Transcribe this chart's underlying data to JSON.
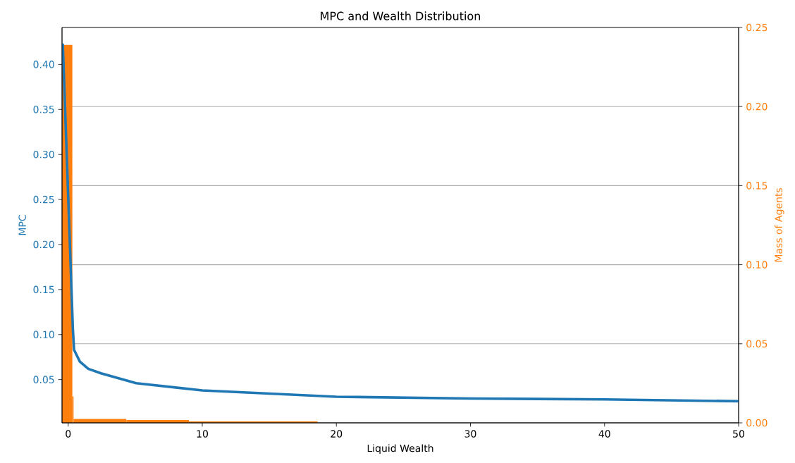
{
  "chart_data": {
    "type": "line",
    "title": "MPC and Wealth Distribution",
    "xlabel": "Liquid Wealth",
    "ylabel": "MPC",
    "y2label": "Mass of Agents",
    "xlim": [
      -0.46,
      50
    ],
    "xticks": [
      0,
      10,
      20,
      30,
      40,
      50
    ],
    "ylim": [
      0.002,
      0.441
    ],
    "yticks": [
      {
        "value": 0.05,
        "label": "0.05"
      },
      {
        "value": 0.1,
        "label": "0.10"
      },
      {
        "value": 0.15,
        "label": "0.15"
      },
      {
        "value": 0.2,
        "label": "0.20"
      },
      {
        "value": 0.25,
        "label": "0.25"
      },
      {
        "value": 0.3,
        "label": "0.30"
      },
      {
        "value": 0.35,
        "label": "0.35"
      },
      {
        "value": 0.4,
        "label": "0.40"
      }
    ],
    "y2lim": [
      0,
      0.25
    ],
    "y2ticks": [
      {
        "value": 0,
        "label": "0.00"
      },
      {
        "value": 0.05,
        "label": "0.05"
      },
      {
        "value": 0.1,
        "label": "0.10"
      },
      {
        "value": 0.15,
        "label": "0.15"
      },
      {
        "value": 0.2,
        "label": "0.20"
      },
      {
        "value": 0.25,
        "label": "0.25"
      }
    ],
    "grid": "y2",
    "series": [
      {
        "color": "#1f77b4",
        "x": [
          -0.4,
          0.35,
          0.44,
          0.87,
          1.5,
          2.45,
          5.07,
          10,
          20,
          30,
          40,
          50
        ],
        "values": [
          0.422,
          0.106,
          0.083,
          0.07,
          0.062,
          0.057,
          0.046,
          0.038,
          0.031,
          0.029,
          0.028,
          0.026
        ]
      },
      {
        "type": "histogram",
        "axis": "y2",
        "color": "#ff7f0e",
        "bins": [
          -0.46,
          0.31,
          0.4,
          4.34,
          9.0,
          18.6
        ],
        "values": [
          0.239,
          0.0167,
          0.0025,
          0.0018,
          0.0009
        ]
      }
    ]
  }
}
